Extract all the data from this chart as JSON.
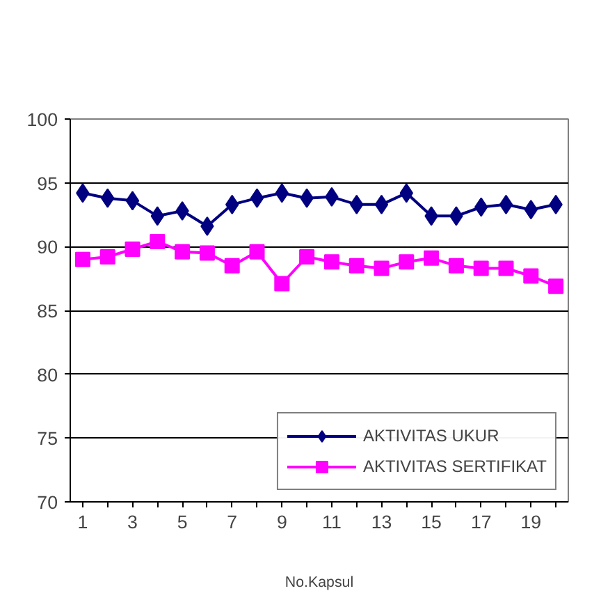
{
  "chart_data": {
    "type": "line",
    "xlabel": "No.Kapsul",
    "x": [
      1,
      2,
      3,
      4,
      5,
      6,
      7,
      8,
      9,
      10,
      11,
      12,
      13,
      14,
      15,
      16,
      17,
      18,
      19,
      20
    ],
    "series": [
      {
        "name": "AKTIVITAS UKUR",
        "color": "#000080",
        "marker": "diamond",
        "values": [
          94.2,
          93.8,
          93.6,
          92.4,
          92.8,
          91.6,
          93.3,
          93.8,
          94.2,
          93.8,
          93.9,
          93.3,
          93.3,
          94.2,
          92.4,
          92.4,
          93.1,
          93.3,
          92.9,
          93.3
        ]
      },
      {
        "name": "AKTIVITAS SERTIFIKAT",
        "color": "#ff00ff",
        "marker": "square",
        "values": [
          89.0,
          89.2,
          89.8,
          90.4,
          89.6,
          89.5,
          88.5,
          89.6,
          87.1,
          89.2,
          88.8,
          88.5,
          88.3,
          88.8,
          89.1,
          88.5,
          88.3,
          88.3,
          87.7,
          86.9
        ]
      }
    ],
    "xlim": [
      0.5,
      20.5
    ],
    "xticks": [
      1,
      {
        "value": 2,
        "label": null
      },
      3,
      {
        "value": 4,
        "label": null
      },
      5,
      {
        "value": 6,
        "label": null
      },
      7,
      {
        "value": 8,
        "label": null
      },
      9,
      {
        "value": 10,
        "label": null
      },
      11,
      {
        "value": 12,
        "label": null
      },
      13,
      {
        "value": 14,
        "label": null
      },
      15,
      {
        "value": 16,
        "label": null
      },
      17,
      {
        "value": 18,
        "label": null
      },
      19,
      {
        "value": 20,
        "label": null
      }
    ],
    "ylim": [
      70,
      100
    ],
    "yticks": [
      70,
      75,
      80,
      85,
      90,
      95,
      100
    ],
    "grid": "y",
    "legend": "bottom right"
  }
}
